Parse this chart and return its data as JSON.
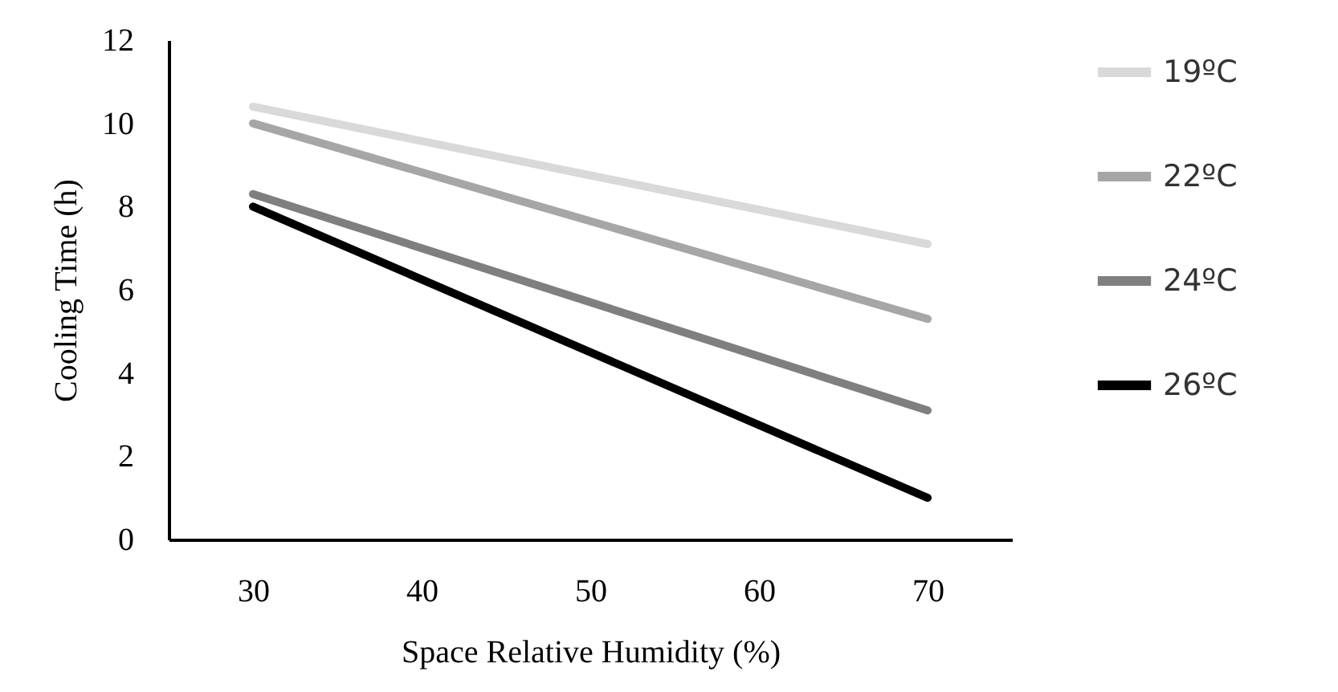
{
  "chart_data": {
    "type": "line",
    "xlabel": "Space Relative Humidity (%)",
    "ylabel": "Cooling Time (h)",
    "x": [
      30,
      70
    ],
    "series": [
      {
        "name": "19ºC",
        "color": "#d9d9d9",
        "values": [
          10.4,
          7.1
        ]
      },
      {
        "name": "22ºC",
        "color": "#a6a6a6",
        "values": [
          10.0,
          5.3
        ]
      },
      {
        "name": "24ºC",
        "color": "#7f7f7f",
        "values": [
          8.3,
          3.1
        ]
      },
      {
        "name": "26ºC",
        "color": "#000000",
        "values": [
          8.0,
          1.0
        ]
      }
    ],
    "xlim": [
      25,
      75
    ],
    "xticks": [
      30,
      40,
      50,
      60,
      70
    ],
    "ylim": [
      0,
      12
    ],
    "yticks": [
      0,
      2,
      4,
      6,
      8,
      10,
      12
    ],
    "grid": false,
    "legend": "right",
    "marker": "none",
    "line_style": "solid"
  }
}
